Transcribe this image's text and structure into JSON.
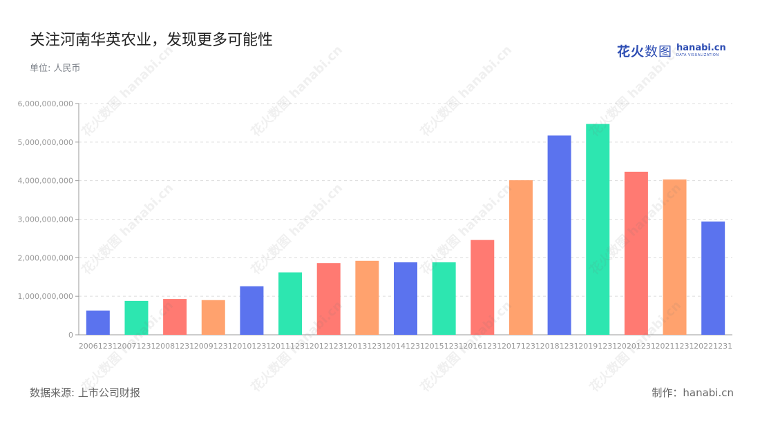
{
  "title": "关注河南华英农业，发现更多可能性",
  "unit": "单位: 人民币",
  "logo": {
    "cn_bold": "花火",
    "cn_light": "数图",
    "en_main": "hanabi.cn",
    "en_sub": "DATA VISUALIZATION"
  },
  "source": "数据来源: 上市公司财报",
  "maker": "制作：hanabi.cn",
  "colors": [
    "#5b73ee",
    "#2de6b0",
    "#ff7a72",
    "#ffa26e"
  ],
  "chart_data": {
    "type": "bar",
    "categories": [
      "20061231",
      "20071231",
      "20081231",
      "20091231",
      "20101231",
      "20111231",
      "20121231",
      "20131231",
      "20141231",
      "20151231",
      "20161231",
      "20171231",
      "20181231",
      "20191231",
      "20201231",
      "20211231",
      "20221231"
    ],
    "values": [
      630000000,
      880000000,
      930000000,
      900000000,
      1260000000,
      1620000000,
      1860000000,
      1920000000,
      1880000000,
      1880000000,
      2460000000,
      4010000000,
      5170000000,
      5470000000,
      4230000000,
      4030000000,
      2940000000
    ],
    "ylim": [
      0,
      6000000000
    ],
    "yticks": [
      0,
      1000000000,
      2000000000,
      3000000000,
      4000000000,
      5000000000,
      6000000000
    ],
    "ytick_labels": [
      "0",
      "1,000,000,000",
      "2,000,000,000",
      "3,000,000,000",
      "4,000,000,000",
      "5,000,000,000",
      "6,000,000,000"
    ],
    "grid": true
  }
}
